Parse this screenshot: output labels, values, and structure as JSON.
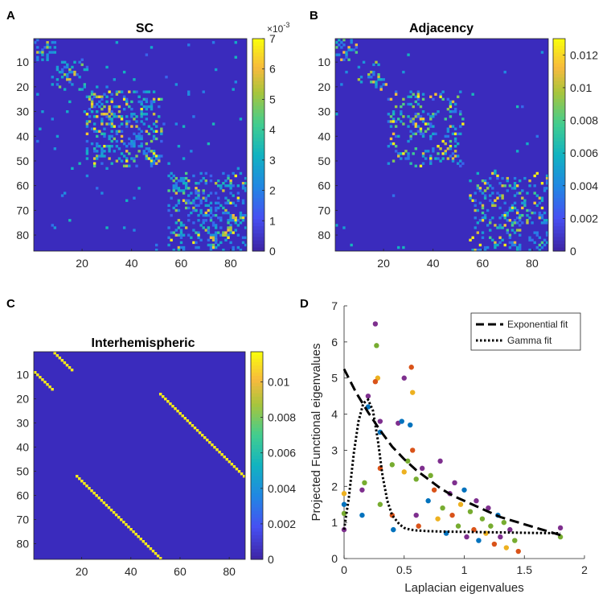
{
  "panels": {
    "A": {
      "letter": "A",
      "title": "SC",
      "cbar_ticks": [
        "0",
        "1",
        "2",
        "3",
        "4",
        "5",
        "6",
        "7"
      ],
      "cbar_exponent": "×10",
      "cbar_exponent_power": "-3"
    },
    "B": {
      "letter": "B",
      "title": "Adjacency",
      "cbar_ticks": [
        "0",
        "0.002",
        "0.004",
        "0.006",
        "0.008",
        "0.01",
        "0.012"
      ]
    },
    "C": {
      "letter": "C",
      "title": "Interhemispheric",
      "cbar_ticks": [
        "0",
        "0.002",
        "0.004",
        "0.006",
        "0.008",
        "0.01"
      ]
    },
    "D": {
      "letter": "D"
    }
  },
  "colors": {
    "matrix_background": "#3a2bbd",
    "blue": "#0072bd",
    "orange": "#d95319",
    "yellow": "#edb120",
    "purple": "#7e2f8e",
    "green": "#77ac30",
    "fit_line": "#000000"
  },
  "chart_data": [
    {
      "panel": "A",
      "type": "heatmap",
      "title": "SC",
      "n_regions": 86,
      "y_ticks": [
        10,
        20,
        30,
        40,
        50,
        60,
        70,
        80
      ],
      "x_ticks": [
        20,
        40,
        60,
        80
      ],
      "color_range": [
        0,
        0.007
      ],
      "colormap": "parula",
      "blocks": [
        [
          1,
          9
        ],
        [
          10,
          21
        ],
        [
          22,
          52
        ],
        [
          55,
          86
        ]
      ]
    },
    {
      "panel": "B",
      "type": "heatmap",
      "title": "Adjacency",
      "n_regions": 86,
      "y_ticks": [
        10,
        20,
        30,
        40,
        50,
        60,
        70,
        80
      ],
      "x_ticks": [
        20,
        40,
        60,
        80
      ],
      "color_range": [
        0,
        0.013
      ],
      "colormap": "parula",
      "blocks": [
        [
          1,
          9
        ],
        [
          10,
          21
        ],
        [
          22,
          52
        ],
        [
          55,
          86
        ]
      ]
    },
    {
      "panel": "C",
      "type": "heatmap",
      "title": "Interhemispheric",
      "n_regions": 86,
      "y_ticks": [
        10,
        20,
        30,
        40,
        50,
        60,
        70,
        80
      ],
      "x_ticks": [
        20,
        40,
        60,
        80
      ],
      "color_range": [
        0,
        0.0117
      ],
      "colormap": "parula",
      "diagonals": [
        {
          "row_start": 1,
          "col_start": 9,
          "length": 8
        },
        {
          "row_start": 9,
          "col_start": 1,
          "length": 8
        },
        {
          "row_start": 18,
          "col_start": 52,
          "length": 35
        },
        {
          "row_start": 52,
          "col_start": 18,
          "length": 35
        }
      ]
    },
    {
      "panel": "D",
      "type": "scatter",
      "xlabel": "Laplacian eigenvalues",
      "ylabel": "Projected Functional eigenvalues",
      "xlim": [
        0,
        2
      ],
      "ylim": [
        0,
        7
      ],
      "x_ticks": [
        "0",
        "0.5",
        "1",
        "1.5",
        "2"
      ],
      "y_ticks": [
        "0",
        "1",
        "2",
        "3",
        "4",
        "5",
        "6",
        "7"
      ],
      "legend": [
        {
          "label": "Exponential fit",
          "style": "dashed"
        },
        {
          "label": "Gamma fit",
          "style": "dotted"
        }
      ],
      "legend_position": "top-right",
      "series": [
        {
          "name": "Exponential fit",
          "x": [
            0,
            0.1,
            0.2,
            0.3,
            0.4,
            0.5,
            0.6,
            0.7,
            0.8,
            0.9,
            1.0,
            1.1,
            1.2,
            1.3,
            1.4,
            1.5,
            1.6,
            1.7,
            1.8
          ],
          "y": [
            5.25,
            4.6,
            4.05,
            3.55,
            3.1,
            2.75,
            2.45,
            2.2,
            1.95,
            1.75,
            1.6,
            1.45,
            1.3,
            1.15,
            1.05,
            0.95,
            0.85,
            0.75,
            0.65
          ]
        },
        {
          "name": "Gamma fit",
          "x": [
            0,
            0.04,
            0.08,
            0.12,
            0.16,
            0.2,
            0.24,
            0.28,
            0.32,
            0.36,
            0.4,
            0.46,
            0.5,
            0.55,
            0.6,
            0.7,
            0.8,
            1.0,
            1.2,
            1.4,
            1.6,
            1.8
          ],
          "y": [
            0.8,
            1.7,
            2.9,
            3.8,
            4.3,
            4.4,
            4.1,
            3.3,
            2.3,
            1.6,
            1.2,
            0.95,
            0.85,
            0.8,
            0.78,
            0.76,
            0.75,
            0.74,
            0.73,
            0.72,
            0.71,
            0.7
          ]
        },
        {
          "name": "data",
          "points": [
            {
              "x": 0,
              "y": 0.8,
              "c": "purple"
            },
            {
              "x": 0,
              "y": 1.5,
              "c": "blue"
            },
            {
              "x": 0,
              "y": 1.8,
              "c": "yellow"
            },
            {
              "x": 0,
              "y": 1.25,
              "c": "green"
            },
            {
              "x": 0.15,
              "y": 1.2,
              "c": "blue"
            },
            {
              "x": 0.15,
              "y": 1.9,
              "c": "purple"
            },
            {
              "x": 0.17,
              "y": 2.1,
              "c": "green"
            },
            {
              "x": 0.2,
              "y": 4.5,
              "c": "purple"
            },
            {
              "x": 0.2,
              "y": 4.2,
              "c": "blue"
            },
            {
              "x": 0.26,
              "y": 6.5,
              "c": "purple"
            },
            {
              "x": 0.27,
              "y": 5.9,
              "c": "green"
            },
            {
              "x": 0.28,
              "y": 5.0,
              "c": "yellow"
            },
            {
              "x": 0.26,
              "y": 4.9,
              "c": "orange"
            },
            {
              "x": 0.3,
              "y": 3.5,
              "c": "blue"
            },
            {
              "x": 0.3,
              "y": 3.8,
              "c": "purple"
            },
            {
              "x": 0.3,
              "y": 2.5,
              "c": "orange"
            },
            {
              "x": 0.3,
              "y": 1.5,
              "c": "green"
            },
            {
              "x": 0.4,
              "y": 2.6,
              "c": "green"
            },
            {
              "x": 0.4,
              "y": 1.2,
              "c": "orange"
            },
            {
              "x": 0.41,
              "y": 0.8,
              "c": "blue"
            },
            {
              "x": 0.45,
              "y": 3.75,
              "c": "purple"
            },
            {
              "x": 0.48,
              "y": 3.8,
              "c": "blue"
            },
            {
              "x": 0.5,
              "y": 2.4,
              "c": "yellow"
            },
            {
              "x": 0.5,
              "y": 5.0,
              "c": "purple"
            },
            {
              "x": 0.53,
              "y": 2.7,
              "c": "green"
            },
            {
              "x": 0.56,
              "y": 5.3,
              "c": "orange"
            },
            {
              "x": 0.57,
              "y": 4.6,
              "c": "yellow"
            },
            {
              "x": 0.55,
              "y": 3.7,
              "c": "blue"
            },
            {
              "x": 0.57,
              "y": 3.0,
              "c": "orange"
            },
            {
              "x": 0.6,
              "y": 2.2,
              "c": "green"
            },
            {
              "x": 0.6,
              "y": 1.2,
              "c": "purple"
            },
            {
              "x": 0.62,
              "y": 0.9,
              "c": "orange"
            },
            {
              "x": 0.65,
              "y": 2.5,
              "c": "purple"
            },
            {
              "x": 0.7,
              "y": 1.6,
              "c": "blue"
            },
            {
              "x": 0.72,
              "y": 2.3,
              "c": "green"
            },
            {
              "x": 0.75,
              "y": 1.9,
              "c": "orange"
            },
            {
              "x": 0.78,
              "y": 1.1,
              "c": "yellow"
            },
            {
              "x": 0.8,
              "y": 2.7,
              "c": "purple"
            },
            {
              "x": 0.82,
              "y": 1.4,
              "c": "green"
            },
            {
              "x": 0.85,
              "y": 0.7,
              "c": "blue"
            },
            {
              "x": 0.88,
              "y": 1.8,
              "c": "purple"
            },
            {
              "x": 0.9,
              "y": 1.2,
              "c": "orange"
            },
            {
              "x": 0.92,
              "y": 2.1,
              "c": "purple"
            },
            {
              "x": 0.95,
              "y": 0.9,
              "c": "green"
            },
            {
              "x": 0.97,
              "y": 1.5,
              "c": "yellow"
            },
            {
              "x": 1.0,
              "y": 1.9,
              "c": "blue"
            },
            {
              "x": 1.02,
              "y": 0.6,
              "c": "purple"
            },
            {
              "x": 1.05,
              "y": 1.3,
              "c": "green"
            },
            {
              "x": 1.08,
              "y": 0.8,
              "c": "orange"
            },
            {
              "x": 1.1,
              "y": 1.6,
              "c": "purple"
            },
            {
              "x": 1.12,
              "y": 0.5,
              "c": "blue"
            },
            {
              "x": 1.15,
              "y": 1.1,
              "c": "green"
            },
            {
              "x": 1.18,
              "y": 0.7,
              "c": "yellow"
            },
            {
              "x": 1.2,
              "y": 1.4,
              "c": "purple"
            },
            {
              "x": 1.22,
              "y": 0.9,
              "c": "green"
            },
            {
              "x": 1.25,
              "y": 0.4,
              "c": "orange"
            },
            {
              "x": 1.28,
              "y": 1.2,
              "c": "blue"
            },
            {
              "x": 1.3,
              "y": 0.6,
              "c": "purple"
            },
            {
              "x": 1.33,
              "y": 1.0,
              "c": "green"
            },
            {
              "x": 1.35,
              "y": 0.3,
              "c": "yellow"
            },
            {
              "x": 1.38,
              "y": 0.8,
              "c": "purple"
            },
            {
              "x": 1.42,
              "y": 0.5,
              "c": "green"
            },
            {
              "x": 1.45,
              "y": 0.2,
              "c": "orange"
            },
            {
              "x": 1.8,
              "y": 0.85,
              "c": "purple"
            },
            {
              "x": 1.8,
              "y": 0.6,
              "c": "green"
            }
          ]
        }
      ]
    }
  ]
}
